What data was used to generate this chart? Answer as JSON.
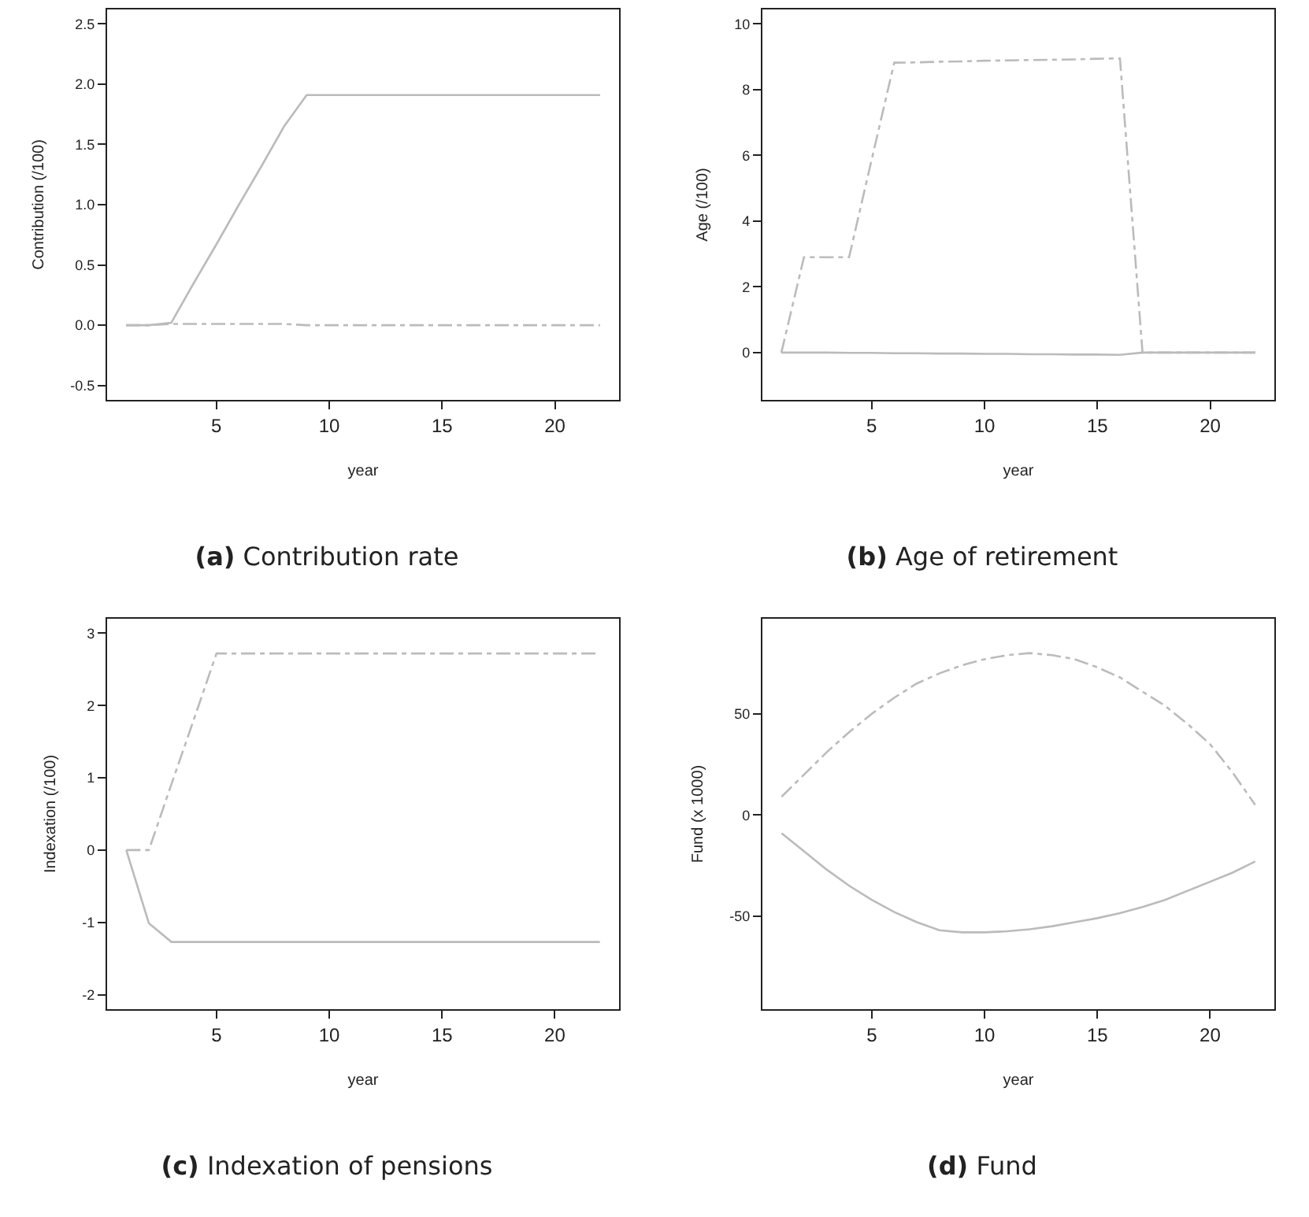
{
  "chart_data": [
    {
      "type": "line",
      "title": "(a) Contribution rate",
      "xlabel": "year",
      "ylabel": "Contribution (/100)",
      "x": [
        1,
        2,
        3,
        4,
        5,
        6,
        7,
        8,
        9,
        10,
        11,
        12,
        13,
        14,
        15,
        16,
        17,
        18,
        19,
        20,
        21,
        22
      ],
      "xlim": [
        0.16,
        22.84
      ],
      "xticks": [
        5,
        10,
        15,
        20
      ],
      "ylim": [
        -0.62,
        2.62
      ],
      "yticks": [
        -0.5,
        {
          "value": 0,
          "label": "0.0"
        },
        0.5,
        {
          "value": 1,
          "label": "1.0"
        },
        1.5,
        {
          "value": 2,
          "label": "2.0"
        },
        2.5
      ],
      "grid": false,
      "marker": "none",
      "series": [
        {
          "color": "#bbbbbb",
          "line_style": "solid",
          "values": [
            0,
            0,
            0.02,
            0.35,
            0.67,
            1.0,
            1.32,
            1.65,
            1.91,
            1.91,
            1.91,
            1.91,
            1.91,
            1.91,
            1.91,
            1.91,
            1.91,
            1.91,
            1.91,
            1.91,
            1.91,
            1.91
          ]
        },
        {
          "color": "#bbbbbb",
          "line_style": "dashdot",
          "values": [
            0,
            0,
            0.01,
            0.01,
            0.01,
            0.01,
            0.01,
            0.01,
            0,
            0,
            0,
            0,
            0,
            0,
            0,
            0,
            0,
            0,
            0,
            0,
            0,
            0
          ]
        }
      ]
    },
    {
      "type": "line",
      "title": "(b) Age of retirement",
      "xlabel": "year",
      "ylabel": "Age (/100)",
      "x": [
        1,
        2,
        3,
        4,
        5,
        6,
        7,
        8,
        9,
        10,
        11,
        12,
        13,
        14,
        15,
        16,
        17,
        18,
        19,
        20,
        21,
        22
      ],
      "xlim": [
        0.16,
        22.84
      ],
      "xticks": [
        5,
        10,
        15,
        20
      ],
      "ylim": [
        -1.44,
        10.44
      ],
      "yticks": [
        0,
        2,
        4,
        6,
        8,
        10
      ],
      "grid": false,
      "marker": "none",
      "series": [
        {
          "color": "#bbbbbb",
          "line_style": "solid",
          "values": [
            0,
            0,
            0,
            -0.01,
            -0.01,
            -0.02,
            -0.02,
            -0.03,
            -0.03,
            -0.04,
            -0.04,
            -0.05,
            -0.05,
            -0.06,
            -0.06,
            -0.07,
            0,
            0,
            0,
            0,
            0,
            0
          ]
        },
        {
          "color": "#bbbbbb",
          "line_style": "dashdot",
          "values": [
            0,
            2.9,
            2.9,
            2.9,
            5.87,
            8.82,
            8.83,
            8.85,
            8.86,
            8.88,
            8.89,
            8.9,
            8.91,
            8.92,
            8.94,
            8.95,
            0,
            0,
            0,
            0,
            0,
            0
          ]
        }
      ]
    },
    {
      "type": "line",
      "title": "(c) Indexation of pensions",
      "xlabel": "year",
      "ylabel": "Indexation (/100)",
      "x": [
        1,
        2,
        3,
        4,
        5,
        6,
        7,
        8,
        9,
        10,
        11,
        12,
        13,
        14,
        15,
        16,
        17,
        18,
        19,
        20,
        21,
        22
      ],
      "xlim": [
        0.15,
        22.85
      ],
      "xticks": [
        5,
        10,
        15,
        20
      ],
      "ylim": [
        -2.2,
        3.2
      ],
      "yticks": [
        -2,
        -1,
        0,
        1,
        2,
        3
      ],
      "grid": false,
      "marker": "none",
      "series": [
        {
          "color": "#bbbbbb",
          "line_style": "solid",
          "values": [
            0,
            -1.01,
            -1.27,
            -1.27,
            -1.27,
            -1.27,
            -1.27,
            -1.27,
            -1.27,
            -1.27,
            -1.27,
            -1.27,
            -1.27,
            -1.27,
            -1.27,
            -1.27,
            -1.27,
            -1.27,
            -1.27,
            -1.27,
            -1.27,
            -1.27
          ]
        },
        {
          "color": "#bbbbbb",
          "line_style": "dashdot",
          "values": [
            0,
            0,
            0.91,
            1.81,
            2.72,
            2.72,
            2.72,
            2.72,
            2.72,
            2.72,
            2.72,
            2.72,
            2.72,
            2.72,
            2.72,
            2.72,
            2.72,
            2.72,
            2.72,
            2.72,
            2.72,
            2.72
          ]
        }
      ]
    },
    {
      "type": "line",
      "title": "(d) Fund",
      "xlabel": "year",
      "ylabel": "Fund (x 1000)",
      "x": [
        1,
        2,
        3,
        4,
        5,
        6,
        7,
        8,
        9,
        10,
        11,
        12,
        13,
        14,
        15,
        16,
        17,
        18,
        19,
        20,
        21,
        22
      ],
      "xlim": [
        0.15,
        22.85
      ],
      "xticks": [
        5,
        10,
        15,
        20
      ],
      "ylim": [
        -96,
        97
      ],
      "yticks": [
        -50,
        0,
        50
      ],
      "grid": false,
      "marker": "none",
      "series": [
        {
          "color": "#bbbbbb",
          "line_style": "solid",
          "values": [
            -9,
            -18,
            -27,
            -35,
            -42,
            -48,
            -53,
            -57,
            -58,
            -58,
            -57.5,
            -56.5,
            -55,
            -53,
            -51,
            -48.5,
            -45.5,
            -42,
            -37.5,
            -33,
            -28.5,
            -23
          ]
        },
        {
          "color": "#bbbbbb",
          "line_style": "dashdot",
          "values": [
            9,
            20,
            31,
            41,
            50,
            58,
            65,
            70,
            74,
            77,
            79,
            80,
            79,
            77,
            73,
            68,
            61,
            54,
            45,
            35,
            21,
            5
          ]
        }
      ]
    }
  ]
}
